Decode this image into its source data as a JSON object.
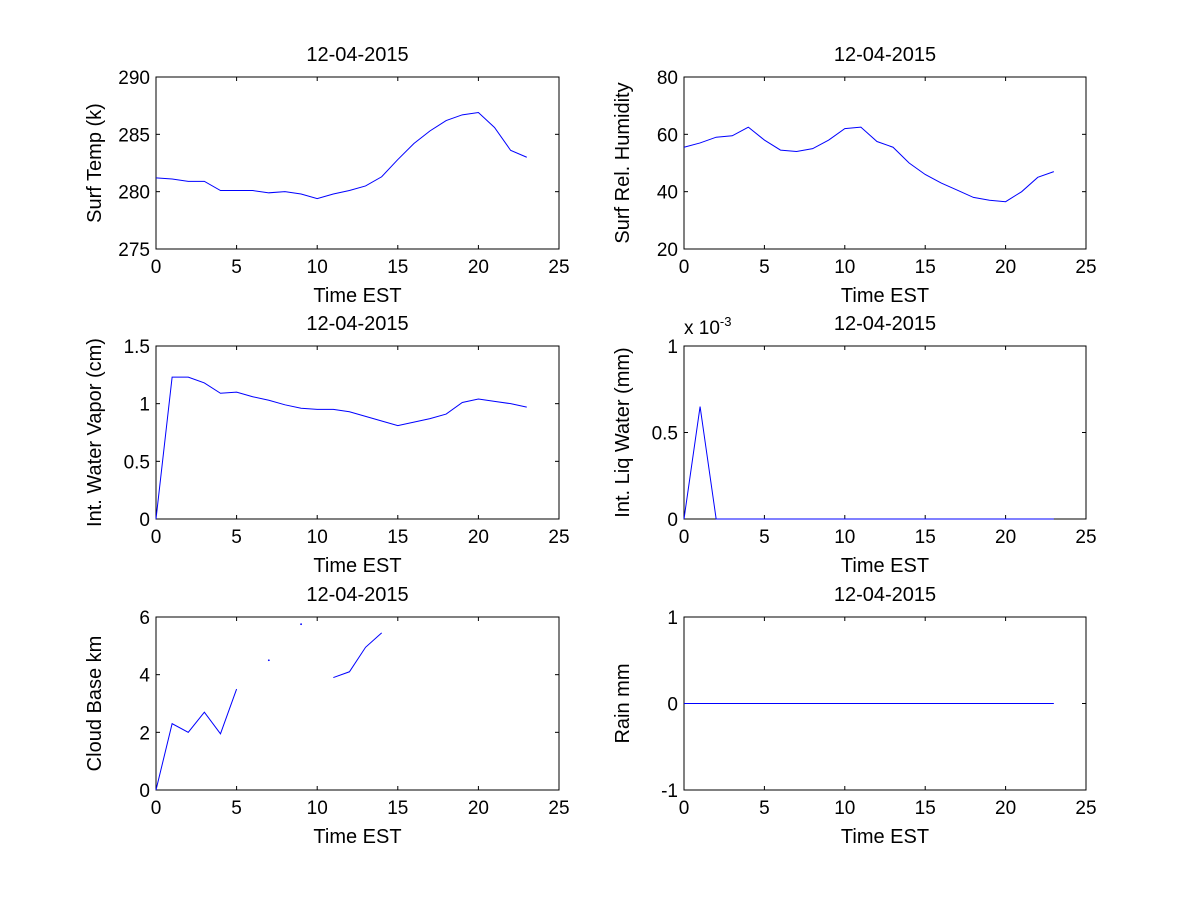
{
  "figure": {
    "background": "#ffffff",
    "axes_color": "#000000",
    "line_color": "#0000ff"
  },
  "chart_data": [
    {
      "type": "line",
      "title": "12-04-2015",
      "xlabel": "Time EST",
      "ylabel": "Surf Temp (k)",
      "xlim": [
        0,
        25
      ],
      "ylim": [
        275,
        290
      ],
      "xticks": [
        0,
        5,
        10,
        15,
        20,
        25
      ],
      "yticks": [
        275,
        280,
        285,
        290
      ],
      "xtick_labels": [
        "0",
        "5",
        "10",
        "15",
        "20",
        "25"
      ],
      "ytick_labels": [
        "275",
        "280",
        "285",
        "290"
      ],
      "grid": false,
      "series": [
        {
          "x": [
            0,
            1,
            2,
            3,
            4,
            5,
            6,
            7,
            8,
            9,
            10,
            11,
            12,
            13,
            14,
            15,
            16,
            17,
            18,
            19,
            20,
            21,
            22,
            23
          ],
          "y": [
            281.2,
            281.1,
            280.9,
            280.9,
            280.1,
            280.1,
            280.1,
            279.9,
            280.0,
            279.8,
            279.4,
            279.8,
            280.1,
            280.5,
            281.3,
            282.8,
            284.2,
            285.3,
            286.2,
            286.7,
            286.9,
            285.6,
            283.6,
            283.0
          ]
        }
      ]
    },
    {
      "type": "line",
      "title": "12-04-2015",
      "xlabel": "Time EST",
      "ylabel": "Surf Rel. Humidity",
      "xlim": [
        0,
        25
      ],
      "ylim": [
        20,
        80
      ],
      "xticks": [
        0,
        5,
        10,
        15,
        20,
        25
      ],
      "yticks": [
        20,
        40,
        60,
        80
      ],
      "xtick_labels": [
        "0",
        "5",
        "10",
        "15",
        "20",
        "25"
      ],
      "ytick_labels": [
        "20",
        "40",
        "60",
        "80"
      ],
      "grid": false,
      "series": [
        {
          "x": [
            0,
            1,
            2,
            3,
            4,
            5,
            6,
            7,
            8,
            9,
            10,
            11,
            12,
            13,
            14,
            15,
            16,
            17,
            18,
            19,
            20,
            21,
            22,
            23
          ],
          "y": [
            55.5,
            57.0,
            59.0,
            59.5,
            62.5,
            58.0,
            54.5,
            54.0,
            55.0,
            58.0,
            62.0,
            62.5,
            57.5,
            55.5,
            50.0,
            46.0,
            43.0,
            40.5,
            38.0,
            37.0,
            36.5,
            40.0,
            45.0,
            47.0
          ]
        }
      ]
    },
    {
      "type": "line",
      "title": "12-04-2015",
      "xlabel": "Time EST",
      "ylabel": "Int. Water Vapor (cm)",
      "xlim": [
        0,
        25
      ],
      "ylim": [
        0,
        1.5
      ],
      "xticks": [
        0,
        5,
        10,
        15,
        20,
        25
      ],
      "yticks": [
        0,
        0.5,
        1,
        1.5
      ],
      "xtick_labels": [
        "0",
        "5",
        "10",
        "15",
        "20",
        "25"
      ],
      "ytick_labels": [
        "0",
        "0.5",
        "1",
        "1.5"
      ],
      "grid": false,
      "series": [
        {
          "x": [
            0,
            1,
            2,
            3,
            4,
            5,
            6,
            7,
            8,
            9,
            10,
            11,
            12,
            13,
            14,
            15,
            16,
            17,
            18,
            19,
            20,
            21,
            22,
            23
          ],
          "y": [
            0.0,
            1.23,
            1.23,
            1.18,
            1.09,
            1.1,
            1.06,
            1.03,
            0.99,
            0.96,
            0.95,
            0.95,
            0.93,
            0.89,
            0.85,
            0.81,
            0.84,
            0.87,
            0.91,
            1.01,
            1.04,
            1.02,
            1.0,
            0.97
          ]
        }
      ]
    },
    {
      "type": "line",
      "title": "12-04-2015",
      "xlabel": "Time EST",
      "ylabel": "Int. Liq Water (mm)",
      "y_exponent_label": "x 10",
      "y_exponent_power": "-3",
      "xlim": [
        0,
        25
      ],
      "ylim": [
        0,
        0.001
      ],
      "xticks": [
        0,
        5,
        10,
        15,
        20,
        25
      ],
      "yticks": [
        0,
        0.0005,
        0.001
      ],
      "xtick_labels": [
        "0",
        "5",
        "10",
        "15",
        "20",
        "25"
      ],
      "ytick_labels": [
        "0",
        "0.5",
        "1"
      ],
      "grid": false,
      "series": [
        {
          "x": [
            0,
            1,
            2,
            3,
            4,
            5,
            6,
            7,
            8,
            9,
            10,
            11,
            12,
            13,
            14,
            15,
            16,
            17,
            18,
            19,
            20,
            21,
            22,
            23
          ],
          "y": [
            0.0,
            0.00065,
            0.0,
            0.0,
            0.0,
            0.0,
            0.0,
            0.0,
            0.0,
            0.0,
            0.0,
            0.0,
            0.0,
            0.0,
            0.0,
            0.0,
            0.0,
            0.0,
            0.0,
            0.0,
            0.0,
            0.0,
            0.0,
            0.0
          ]
        }
      ]
    },
    {
      "type": "line",
      "title": "12-04-2015",
      "xlabel": "Time EST",
      "ylabel": "Cloud Base km",
      "xlim": [
        0,
        25
      ],
      "ylim": [
        0,
        6
      ],
      "xticks": [
        0,
        5,
        10,
        15,
        20,
        25
      ],
      "yticks": [
        0,
        2,
        4,
        6
      ],
      "xtick_labels": [
        "0",
        "5",
        "10",
        "15",
        "20",
        "25"
      ],
      "ytick_labels": [
        "0",
        "2",
        "4",
        "6"
      ],
      "grid": false,
      "series": [
        {
          "x": [
            0,
            1,
            2,
            3,
            4,
            5,
            6,
            7,
            8,
            9,
            10,
            11,
            12,
            13,
            14
          ],
          "y": [
            0.0,
            2.3,
            2.0,
            2.7,
            1.95,
            3.5,
            null,
            4.5,
            null,
            5.75,
            null,
            3.9,
            4.1,
            4.95,
            5.45
          ]
        }
      ]
    },
    {
      "type": "line",
      "title": "12-04-2015",
      "xlabel": "Time EST",
      "ylabel": "Rain mm",
      "xlim": [
        0,
        25
      ],
      "ylim": [
        -1,
        1
      ],
      "xticks": [
        0,
        5,
        10,
        15,
        20,
        25
      ],
      "yticks": [
        -1,
        0,
        1
      ],
      "xtick_labels": [
        "0",
        "5",
        "10",
        "15",
        "20",
        "25"
      ],
      "ytick_labels": [
        "-1",
        "0",
        "1"
      ],
      "grid": false,
      "series": [
        {
          "x": [
            0,
            1,
            2,
            3,
            4,
            5,
            6,
            7,
            8,
            9,
            10,
            11,
            12,
            13,
            14,
            15,
            16,
            17,
            18,
            19,
            20,
            21,
            22,
            23
          ],
          "y": [
            0,
            0,
            0,
            0,
            0,
            0,
            0,
            0,
            0,
            0,
            0,
            0,
            0,
            0,
            0,
            0,
            0,
            0,
            0,
            0,
            0,
            0,
            0,
            0
          ]
        }
      ]
    }
  ]
}
